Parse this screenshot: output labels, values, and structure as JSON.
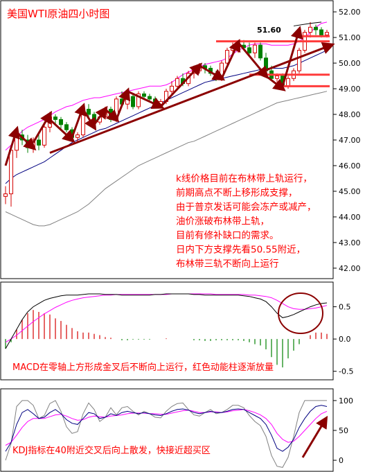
{
  "chart_data": [
    {
      "type": "candlestick",
      "title": "美国WTI原油四小时图",
      "ylim": [
        41.7,
        52.3
      ],
      "y_ticks": [
        "52.00",
        "51.00",
        "50.00",
        "49.00",
        "48.00",
        "47.00",
        "46.00",
        "45.00",
        "44.00",
        "43.00",
        "42.00"
      ],
      "y_tick_values": [
        52,
        51,
        50,
        49,
        48,
        47,
        46,
        45,
        44,
        43,
        42
      ],
      "grid": false,
      "price_label": "51.60",
      "annotation": [
        "k线价格目前在布林带上轨运行，",
        "前期高点不断上移形成支撑，",
        "由于普京发话可能会冻产或减产，",
        "油价涨破布林带上轨，",
        "目前有修补缺口的需求。",
        "日内下方支撑先看50.55附近，",
        "布林带三轨不断向上运行"
      ],
      "support_levels": [
        51.05,
        50.85,
        49.55,
        49.1
      ],
      "candles": [
        [
          44.8,
          45.2,
          44.5,
          44.9
        ],
        [
          44.9,
          46.8,
          44.4,
          46.6
        ],
        [
          46.6,
          47.4,
          46.3,
          47.2
        ],
        [
          47.2,
          47.4,
          46.8,
          47.0
        ],
        [
          47.0,
          47.2,
          46.5,
          46.7
        ],
        [
          46.7,
          47.1,
          46.5,
          47.0
        ],
        [
          47.0,
          47.2,
          46.6,
          46.8
        ],
        [
          46.8,
          47.6,
          46.7,
          47.5
        ],
        [
          47.5,
          48.1,
          47.3,
          47.9
        ],
        [
          47.9,
          48.0,
          47.6,
          47.8
        ],
        [
          47.8,
          47.9,
          47.4,
          47.6
        ],
        [
          47.6,
          47.7,
          47.3,
          47.4
        ],
        [
          47.4,
          47.5,
          47.0,
          47.1
        ],
        [
          47.1,
          47.3,
          46.9,
          47.2
        ],
        [
          47.2,
          48.3,
          47.1,
          48.2
        ],
        [
          48.2,
          48.4,
          47.9,
          48.0
        ],
        [
          48.0,
          48.1,
          47.6,
          47.7
        ],
        [
          47.7,
          48.0,
          47.6,
          47.9
        ],
        [
          47.9,
          48.3,
          47.8,
          48.2
        ],
        [
          48.2,
          48.3,
          47.7,
          47.8
        ],
        [
          47.8,
          48.7,
          47.7,
          48.6
        ],
        [
          48.6,
          48.9,
          48.3,
          48.4
        ],
        [
          48.4,
          48.8,
          48.2,
          48.7
        ],
        [
          48.7,
          48.8,
          48.2,
          48.3
        ],
        [
          48.3,
          48.9,
          48.2,
          48.8
        ],
        [
          48.8,
          48.9,
          48.6,
          48.7
        ],
        [
          48.7,
          48.8,
          48.5,
          48.6
        ],
        [
          48.6,
          48.7,
          48.3,
          48.4
        ],
        [
          48.4,
          48.6,
          48.3,
          48.5
        ],
        [
          48.5,
          49.0,
          48.4,
          48.9
        ],
        [
          48.9,
          49.3,
          48.8,
          49.1
        ],
        [
          49.1,
          49.5,
          49.0,
          49.4
        ],
        [
          49.4,
          49.6,
          49.1,
          49.2
        ],
        [
          49.2,
          49.7,
          49.1,
          49.6
        ],
        [
          49.6,
          49.9,
          49.4,
          49.7
        ],
        [
          49.7,
          50.0,
          49.6,
          49.9
        ],
        [
          49.9,
          50.0,
          49.6,
          49.8
        ],
        [
          49.8,
          49.9,
          49.5,
          49.6
        ],
        [
          49.6,
          49.7,
          49.3,
          49.4
        ],
        [
          49.4,
          50.1,
          49.3,
          50.0
        ],
        [
          50.0,
          50.6,
          49.9,
          50.5
        ],
        [
          50.5,
          50.8,
          50.3,
          50.6
        ],
        [
          50.6,
          50.9,
          50.4,
          50.7
        ],
        [
          50.7,
          50.9,
          50.5,
          50.6
        ],
        [
          50.6,
          50.8,
          50.3,
          50.4
        ],
        [
          50.4,
          50.8,
          50.2,
          50.7
        ],
        [
          50.7,
          50.8,
          50.1,
          50.2
        ],
        [
          50.2,
          50.4,
          49.6,
          49.7
        ],
        [
          49.7,
          49.9,
          49.3,
          49.4
        ],
        [
          49.4,
          49.6,
          49.2,
          49.5
        ],
        [
          49.5,
          49.6,
          49.0,
          49.1
        ],
        [
          49.1,
          49.5,
          49.0,
          49.4
        ],
        [
          49.4,
          49.8,
          49.3,
          49.7
        ],
        [
          49.7,
          50.6,
          49.6,
          50.5
        ],
        [
          50.5,
          51.3,
          50.4,
          51.2
        ],
        [
          51.2,
          51.6,
          51.0,
          51.4
        ],
        [
          51.4,
          51.5,
          51.1,
          51.3
        ],
        [
          51.3,
          51.4,
          51.0,
          51.1
        ],
        [
          51.1,
          51.3,
          51.0,
          51.2
        ]
      ],
      "boll_upper": [
        46.6,
        46.8,
        47.1,
        47.35,
        47.5,
        47.6,
        47.7,
        47.8,
        47.95,
        48.1,
        48.2,
        48.3,
        48.35,
        48.45,
        48.55,
        48.6,
        48.65,
        48.65,
        48.7,
        48.75,
        48.8,
        48.85,
        48.9,
        48.95,
        49.0,
        49.05,
        49.1,
        49.1,
        49.1,
        49.15,
        49.25,
        49.4,
        49.55,
        49.65,
        49.75,
        49.85,
        49.95,
        50.0,
        50.05,
        50.1,
        50.2,
        50.35,
        50.5,
        50.6,
        50.7,
        50.75,
        50.75,
        50.75,
        50.7,
        50.7,
        50.7,
        50.7,
        50.75,
        50.85,
        51.0,
        51.2,
        51.4,
        51.55,
        51.6
      ],
      "boll_mid": [
        45.3,
        45.5,
        45.65,
        45.75,
        45.85,
        45.95,
        46.05,
        46.15,
        46.3,
        46.45,
        46.6,
        46.75,
        46.9,
        47.0,
        47.1,
        47.2,
        47.3,
        47.4,
        47.45,
        47.55,
        47.65,
        47.75,
        47.85,
        47.95,
        48.05,
        48.15,
        48.25,
        48.35,
        48.45,
        48.55,
        48.65,
        48.75,
        48.85,
        48.95,
        49.05,
        49.15,
        49.25,
        49.3,
        49.35,
        49.4,
        49.45,
        49.5,
        49.55,
        49.6,
        49.65,
        49.7,
        49.75,
        49.8,
        49.8,
        49.8,
        49.8,
        49.85,
        49.9,
        50.0,
        50.1,
        50.2,
        50.3,
        50.4,
        50.5
      ],
      "boll_lower": [
        44.2,
        44.1,
        44.0,
        43.9,
        43.8,
        43.7,
        43.65,
        43.65,
        43.7,
        43.8,
        43.9,
        44.0,
        44.1,
        44.2,
        44.35,
        44.5,
        44.7,
        44.9,
        45.1,
        45.25,
        45.4,
        45.55,
        45.7,
        45.85,
        46.0,
        46.1,
        46.2,
        46.3,
        46.4,
        46.5,
        46.6,
        46.7,
        46.8,
        46.9,
        46.95,
        47.05,
        47.15,
        47.25,
        47.35,
        47.45,
        47.55,
        47.65,
        47.75,
        47.85,
        47.95,
        48.05,
        48.15,
        48.25,
        48.35,
        48.45,
        48.5,
        48.55,
        48.6,
        48.65,
        48.7,
        48.75,
        48.8,
        48.85,
        48.9
      ]
    },
    {
      "type": "macd",
      "ylim": [
        -0.6,
        0.85
      ],
      "y_ticks": [
        "0.5",
        "0.0",
        "-0.5"
      ],
      "y_tick_values": [
        0.5,
        0.0,
        -0.5
      ],
      "annotation": "MACD在零轴上方形成金叉后不断向上运行，红色动能柱逐渐放量",
      "dif": [
        -0.15,
        0.0,
        0.15,
        0.3,
        0.42,
        0.5,
        0.55,
        0.6,
        0.63,
        0.65,
        0.67,
        0.68,
        0.68,
        0.68,
        0.69,
        0.7,
        0.7,
        0.7,
        0.69,
        0.69,
        0.69,
        0.68,
        0.68,
        0.68,
        0.68,
        0.68,
        0.68,
        0.69,
        0.69,
        0.7,
        0.7,
        0.7,
        0.7,
        0.7,
        0.69,
        0.69,
        0.68,
        0.68,
        0.68,
        0.68,
        0.68,
        0.68,
        0.68,
        0.67,
        0.66,
        0.64,
        0.62,
        0.58,
        0.5,
        0.4,
        0.33,
        0.35,
        0.38,
        0.42,
        0.46,
        0.5,
        0.53,
        0.55,
        0.56
      ],
      "dea": [
        -0.05,
        0.0,
        0.06,
        0.13,
        0.2,
        0.27,
        0.33,
        0.39,
        0.44,
        0.49,
        0.53,
        0.57,
        0.6,
        0.62,
        0.64,
        0.65,
        0.66,
        0.67,
        0.68,
        0.68,
        0.69,
        0.69,
        0.69,
        0.69,
        0.69,
        0.69,
        0.69,
        0.69,
        0.69,
        0.69,
        0.7,
        0.7,
        0.7,
        0.7,
        0.7,
        0.7,
        0.7,
        0.7,
        0.69,
        0.69,
        0.69,
        0.69,
        0.69,
        0.69,
        0.68,
        0.68,
        0.67,
        0.66,
        0.64,
        0.6,
        0.55,
        0.5,
        0.47,
        0.46,
        0.46,
        0.47,
        0.48,
        0.5,
        0.52
      ],
      "hist": [
        -0.15,
        -0.05,
        0.15,
        0.3,
        0.4,
        0.45,
        0.42,
        0.4,
        0.38,
        0.32,
        0.28,
        0.22,
        0.17,
        0.12,
        0.1,
        0.1,
        0.08,
        0.06,
        0.03,
        0.02,
        0.0,
        -0.02,
        -0.02,
        -0.01,
        -0.01,
        -0.01,
        -0.01,
        0.0,
        0.0,
        0.01,
        0.0,
        0.0,
        0.0,
        0.0,
        -0.02,
        -0.02,
        -0.03,
        -0.03,
        -0.02,
        -0.02,
        -0.02,
        -0.02,
        -0.02,
        -0.03,
        -0.05,
        -0.08,
        -0.1,
        -0.16,
        -0.28,
        -0.4,
        -0.44,
        -0.3,
        -0.18,
        -0.08,
        0.0,
        0.06,
        0.1,
        0.1,
        0.08
      ]
    },
    {
      "type": "kdj",
      "ylim": [
        -15,
        115
      ],
      "y_ticks": [
        "100",
        "50",
        "0"
      ],
      "y_tick_values": [
        100,
        50,
        0
      ],
      "annotation": "KDJ指标在40附近交叉后向上散发，快接近超买区",
      "k": [
        15,
        30,
        60,
        80,
        85,
        78,
        70,
        72,
        80,
        85,
        78,
        68,
        62,
        60,
        70,
        80,
        78,
        70,
        72,
        78,
        75,
        80,
        82,
        80,
        78,
        80,
        78,
        76,
        75,
        78,
        82,
        85,
        86,
        84,
        80,
        78,
        80,
        82,
        80,
        80,
        82,
        85,
        86,
        85,
        80,
        75,
        70,
        60,
        42,
        20,
        15,
        22,
        35,
        55,
        70,
        82,
        90,
        92,
        90
      ],
      "d": [
        25,
        30,
        42,
        55,
        65,
        70,
        70,
        70,
        73,
        76,
        77,
        74,
        70,
        67,
        68,
        72,
        74,
        73,
        72,
        74,
        75,
        76,
        78,
        79,
        79,
        79,
        78,
        78,
        77,
        77,
        79,
        81,
        83,
        84,
        82,
        80,
        80,
        81,
        81,
        80,
        81,
        83,
        84,
        85,
        83,
        80,
        76,
        70,
        60,
        45,
        35,
        30,
        32,
        40,
        50,
        60,
        70,
        78,
        82
      ],
      "j": [
        0,
        28,
        90,
        100,
        100,
        92,
        70,
        75,
        95,
        100,
        82,
        56,
        45,
        48,
        78,
        96,
        85,
        65,
        72,
        88,
        76,
        88,
        90,
        82,
        76,
        82,
        78,
        72,
        71,
        82,
        90,
        95,
        96,
        85,
        76,
        74,
        80,
        85,
        78,
        80,
        85,
        92,
        92,
        88,
        75,
        65,
        58,
        40,
        8,
        -10,
        -12,
        5,
        40,
        80,
        100,
        100,
        100,
        100,
        100
      ]
    }
  ],
  "arrows_note": "",
  "colors": {
    "up": "#d40000",
    "down": "#008000",
    "candle_outline": "#d40000",
    "boll_upper": "#ff00ff",
    "boll_mid": "#000080",
    "boll_lower": "#808080",
    "trend_arrow": "#8b0000",
    "support_line": "#ff3b3b",
    "text": "#ff0000"
  }
}
